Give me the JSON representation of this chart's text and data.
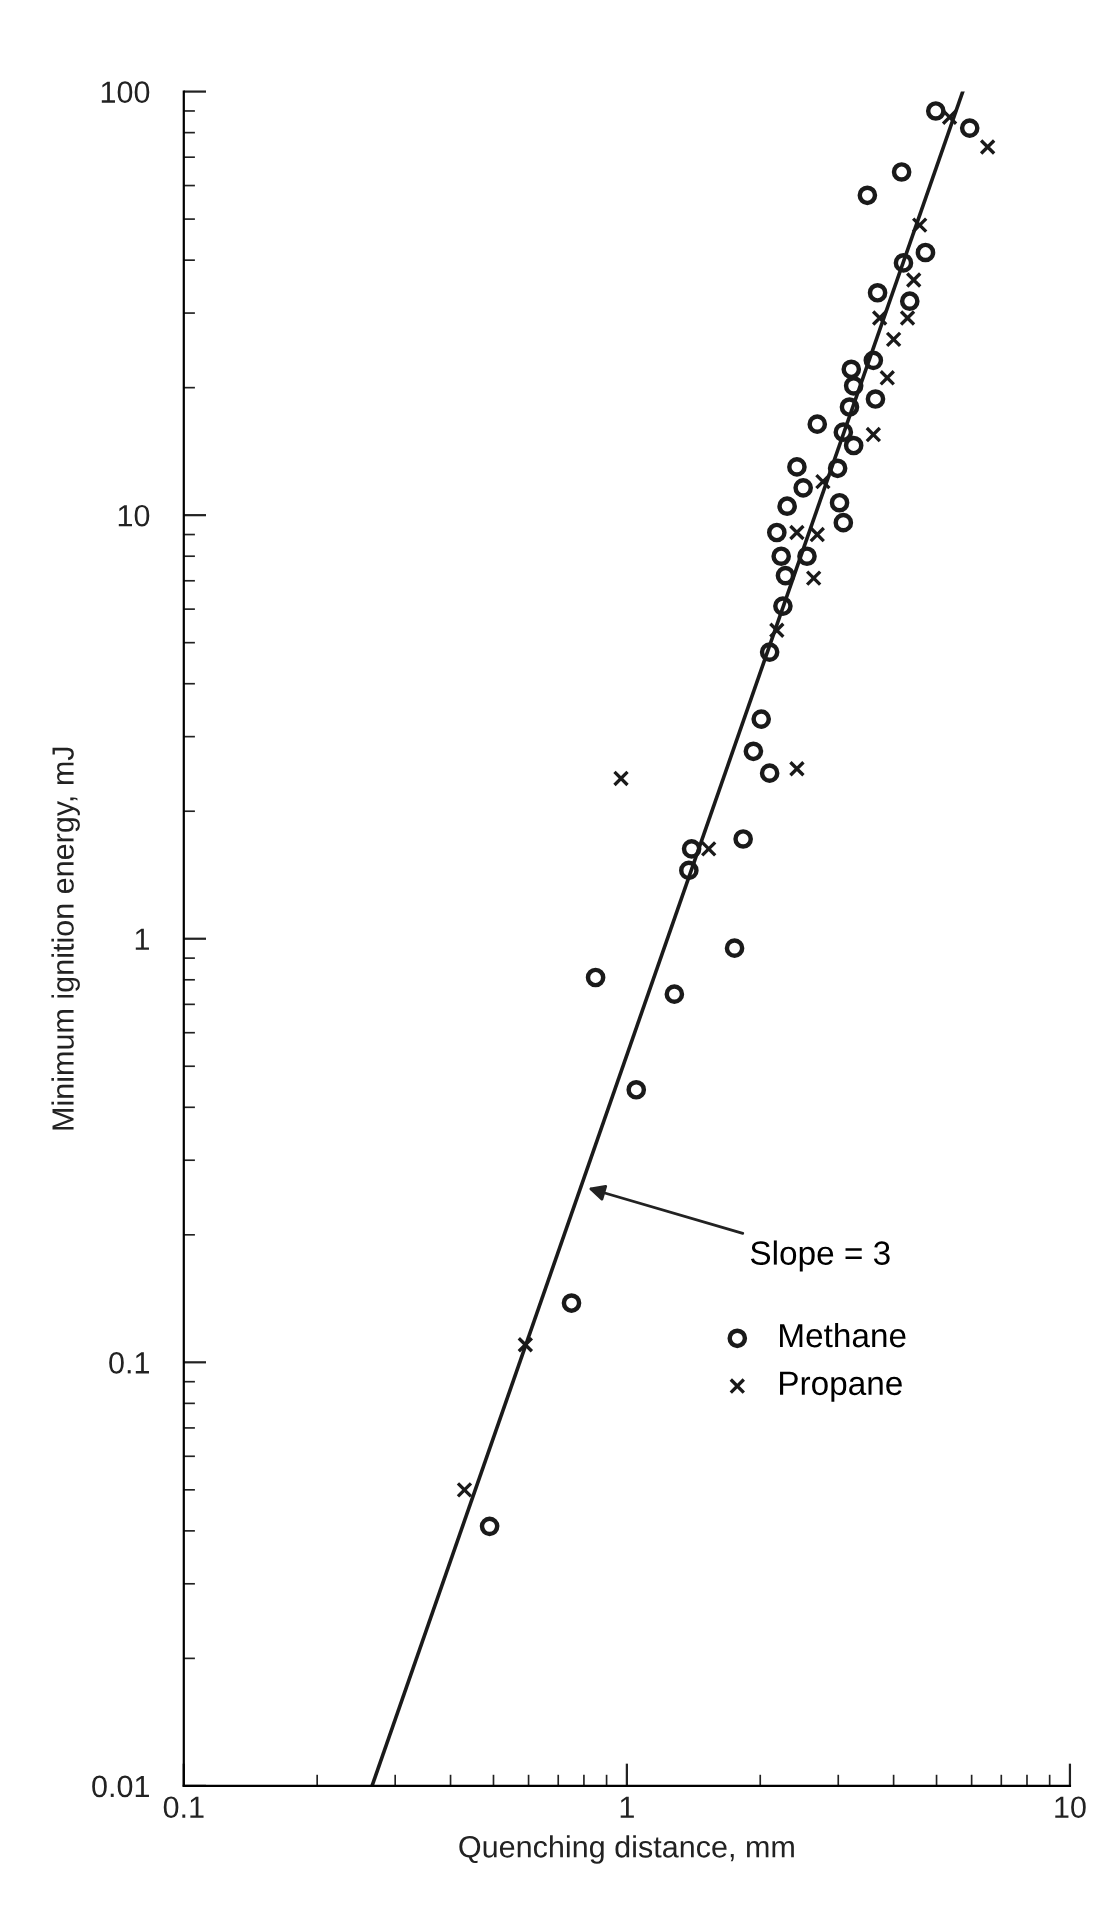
{
  "chart_data": {
    "type": "scatter",
    "xlabel": "Quenching distance, mm",
    "ylabel": "Minimum ignition energy, mJ",
    "log": "xy",
    "xlim": [
      0.1,
      10
    ],
    "xticks": [
      0.1,
      1,
      10
    ],
    "ylim": [
      0.01,
      100
    ],
    "yticks": [
      0.01,
      0.1,
      1,
      10,
      100
    ],
    "grid": false,
    "legend": "right",
    "annotations": [
      {
        "text": "Slope = 3",
        "x": 0.795,
        "y": 0.26
      }
    ],
    "series": [
      {
        "name": "Methane",
        "color": "#1a1a1a",
        "marker": "circle",
        "x": [
          4.98,
          5.94,
          4.17,
          3.49,
          4.72,
          4.21,
          3.68,
          4.35,
          3.6,
          3.21,
          3.25,
          3.64,
          3.18,
          2.69,
          3.08,
          3.25,
          2.99,
          2.42,
          2.5,
          3.02,
          3.08,
          2.3,
          2.18,
          2.23,
          2.55,
          2.28,
          2.25,
          2.1,
          2.01,
          1.93,
          2.1,
          1.83,
          1.4,
          1.38,
          1.75,
          0.85,
          1.28,
          1.05,
          0.75,
          0.49
        ],
        "values": [
          90,
          82,
          64.6,
          56.9,
          41.7,
          39.4,
          33.5,
          32,
          23.2,
          22.1,
          20.2,
          18.8,
          18,
          16.4,
          15.7,
          14.6,
          12.9,
          13,
          11.6,
          10.7,
          9.6,
          10.5,
          9.1,
          8,
          8,
          7.2,
          6.1,
          4.75,
          3.3,
          2.77,
          2.46,
          1.72,
          1.63,
          1.45,
          0.95,
          0.81,
          0.74,
          0.44,
          0.138,
          0.041
        ]
      },
      {
        "name": "Propane",
        "color": "#1a1a1a",
        "marker": "cross",
        "x": [
          5.35,
          6.52,
          4.58,
          4.44,
          4.3,
          3.72,
          4.0,
          3.87,
          3.6,
          2.77,
          2.42,
          2.69,
          2.64,
          2.18,
          2.42,
          0.97,
          1.53,
          0.59,
          0.43
        ],
        "values": [
          87,
          74,
          48.4,
          35.9,
          29.2,
          29.2,
          26,
          21.1,
          15.5,
          12,
          9.1,
          9,
          7.1,
          5.35,
          2.52,
          2.39,
          1.63,
          0.11,
          0.05
        ]
      },
      {
        "type": "line",
        "color": "#1a1a1a",
        "marker": "none",
        "line_style": "solid",
        "x": [
          0.266,
          5.73
        ],
        "values": [
          0.01,
          100
        ]
      }
    ]
  }
}
